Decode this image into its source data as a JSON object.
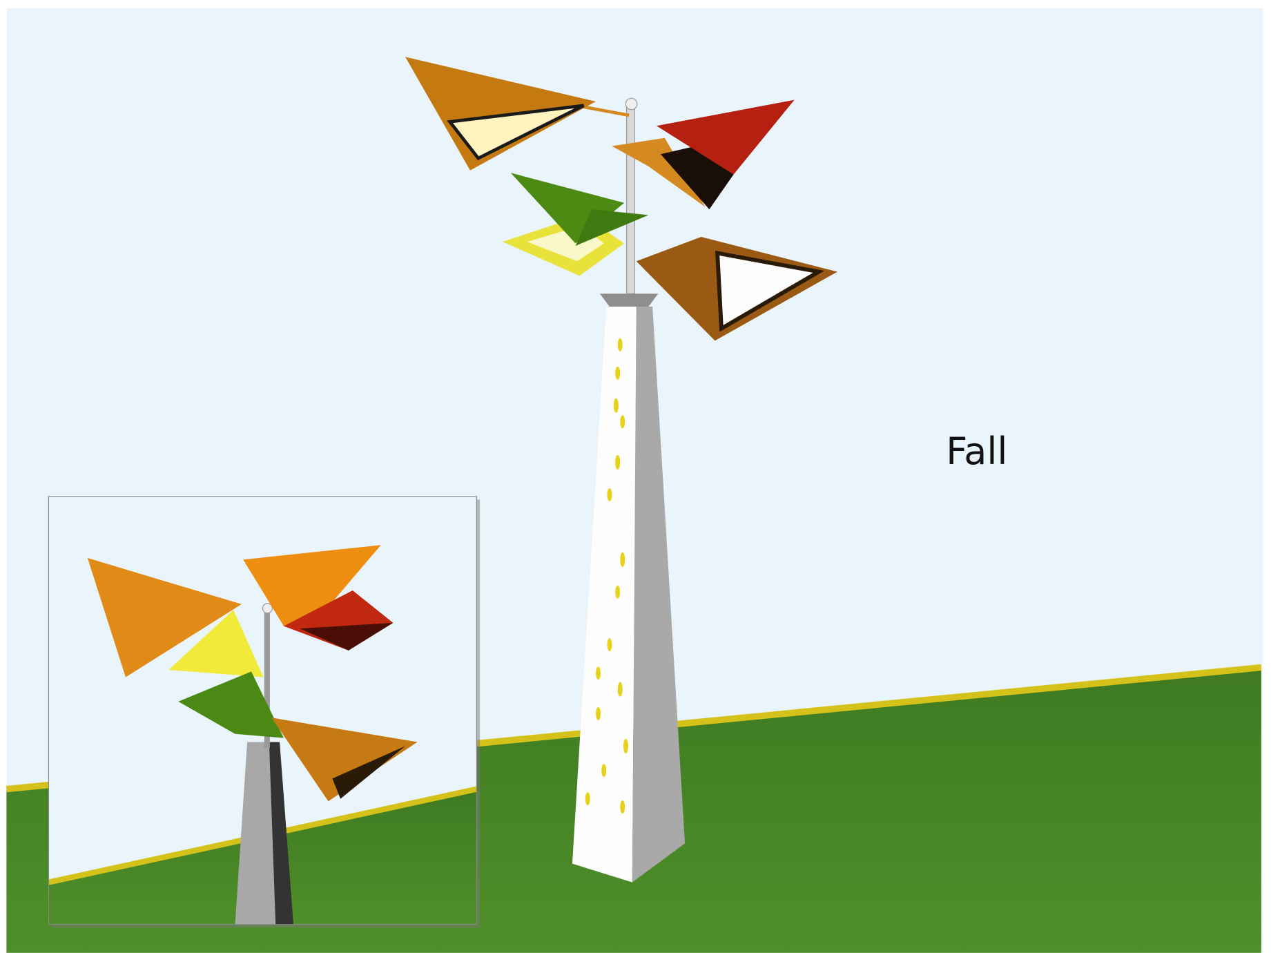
{
  "label": "Fall"
}
